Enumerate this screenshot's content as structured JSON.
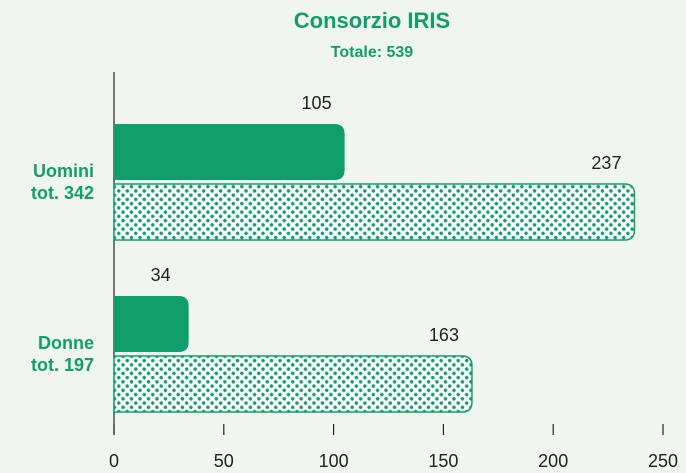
{
  "chart_data": {
    "type": "hbar",
    "title": "Consorzio IRIS",
    "subtitle": "Totale: 539",
    "categories": [
      "Uomini tot. 342",
      "Donne tot. 197"
    ],
    "series": [
      {
        "color": "#109e6c",
        "values": [
          105,
          34
        ]
      },
      {
        "color": "#109e6c",
        "pattern": "dots",
        "values": [
          237,
          163
        ]
      }
    ],
    "xlim": [
      0,
      250
    ],
    "xticks": [
      0,
      50,
      100,
      150,
      200,
      250
    ]
  }
}
